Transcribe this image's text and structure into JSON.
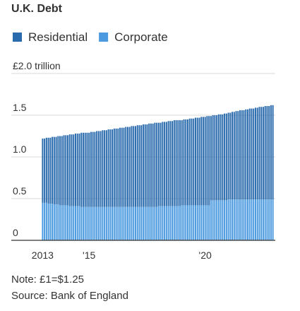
{
  "chart_data": {
    "type": "stacked_bar",
    "title": "U.K. Debt",
    "note": "Note: £1=$1.25",
    "source": "Source: Bank of England",
    "categories": [
      "2013",
      null,
      null,
      null,
      null,
      null,
      null,
      null,
      null,
      null,
      null,
      null,
      null,
      null,
      null,
      null,
      null,
      null,
      null,
      null,
      null,
      null,
      null,
      null,
      "'15",
      null,
      null,
      null,
      null,
      null,
      null,
      null,
      null,
      null,
      null,
      null,
      null,
      null,
      null,
      null,
      null,
      null,
      null,
      null,
      null,
      null,
      null,
      null,
      null,
      null,
      null,
      null,
      null,
      null,
      null,
      null,
      null,
      null,
      null,
      null,
      null,
      null,
      null,
      null,
      null,
      null,
      null,
      null,
      null,
      null,
      null,
      null,
      null,
      null,
      null,
      null,
      null,
      null,
      null,
      null,
      null,
      null,
      null,
      null,
      "'20",
      null,
      null,
      null,
      null,
      null,
      null,
      null,
      null,
      null,
      null,
      null,
      null,
      null,
      null,
      null,
      null,
      null,
      null,
      null,
      null,
      null,
      null,
      null,
      null,
      null,
      null,
      null,
      null,
      null,
      null,
      null,
      null,
      null,
      null,
      null
    ],
    "series": [
      {
        "name": "Corporate",
        "color": "#4b9ae0",
        "values": [
          0.45,
          0.45,
          0.45,
          0.44,
          0.44,
          0.44,
          0.43,
          0.43,
          0.43,
          0.42,
          0.42,
          0.42,
          0.42,
          0.42,
          0.41,
          0.41,
          0.41,
          0.41,
          0.41,
          0.41,
          0.4,
          0.4,
          0.4,
          0.4,
          0.4,
          0.4,
          0.4,
          0.4,
          0.4,
          0.4,
          0.4,
          0.4,
          0.4,
          0.4,
          0.4,
          0.4,
          0.4,
          0.4,
          0.4,
          0.4,
          0.4,
          0.4,
          0.4,
          0.4,
          0.4,
          0.4,
          0.4,
          0.4,
          0.4,
          0.4,
          0.4,
          0.4,
          0.4,
          0.4,
          0.4,
          0.4,
          0.4,
          0.4,
          0.4,
          0.4,
          0.41,
          0.41,
          0.41,
          0.41,
          0.41,
          0.41,
          0.41,
          0.41,
          0.41,
          0.41,
          0.41,
          0.41,
          0.42,
          0.42,
          0.42,
          0.42,
          0.42,
          0.42,
          0.42,
          0.42,
          0.42,
          0.42,
          0.42,
          0.42,
          0.42,
          0.42,
          0.42,
          0.48,
          0.48,
          0.48,
          0.48,
          0.48,
          0.48,
          0.48,
          0.48,
          0.48,
          0.49,
          0.49,
          0.49,
          0.49,
          0.49,
          0.49,
          0.49,
          0.49,
          0.49,
          0.49,
          0.49,
          0.49,
          0.49,
          0.49,
          0.49,
          0.49,
          0.49,
          0.49,
          0.49,
          0.49,
          0.49,
          0.49,
          0.49,
          0.49
        ]
      },
      {
        "name": "Residential",
        "color": "#2a6bad",
        "values": [
          0.77,
          0.77,
          0.78,
          0.79,
          0.79,
          0.8,
          0.81,
          0.81,
          0.82,
          0.83,
          0.83,
          0.84,
          0.84,
          0.84,
          0.86,
          0.86,
          0.86,
          0.87,
          0.87,
          0.87,
          0.89,
          0.89,
          0.89,
          0.89,
          0.89,
          0.9,
          0.9,
          0.9,
          0.91,
          0.91,
          0.91,
          0.92,
          0.92,
          0.92,
          0.93,
          0.93,
          0.93,
          0.94,
          0.94,
          0.94,
          0.95,
          0.95,
          0.95,
          0.96,
          0.96,
          0.96,
          0.97,
          0.97,
          0.97,
          0.98,
          0.98,
          0.98,
          0.99,
          0.99,
          0.99,
          1.0,
          1.0,
          1.0,
          1.01,
          1.01,
          1.0,
          1.0,
          1.01,
          1.01,
          1.01,
          1.02,
          1.02,
          1.02,
          1.03,
          1.03,
          1.03,
          1.03,
          1.02,
          1.03,
          1.03,
          1.03,
          1.04,
          1.04,
          1.04,
          1.05,
          1.05,
          1.05,
          1.06,
          1.06,
          1.06,
          1.07,
          1.07,
          1.01,
          1.02,
          1.02,
          1.02,
          1.03,
          1.03,
          1.03,
          1.04,
          1.04,
          1.04,
          1.04,
          1.05,
          1.05,
          1.06,
          1.06,
          1.07,
          1.07,
          1.07,
          1.08,
          1.08,
          1.09,
          1.09,
          1.09,
          1.1,
          1.1,
          1.11,
          1.11,
          1.11,
          1.12,
          1.12,
          1.12,
          1.13,
          1.13
        ]
      }
    ],
    "ylim": [
      0,
      2
    ],
    "yticks": [
      0,
      0.5,
      {
        "value": 1,
        "label": "1.0"
      },
      1.5,
      {
        "value": 2,
        "label": "£2.0 trillion"
      }
    ],
    "grid": true
  }
}
